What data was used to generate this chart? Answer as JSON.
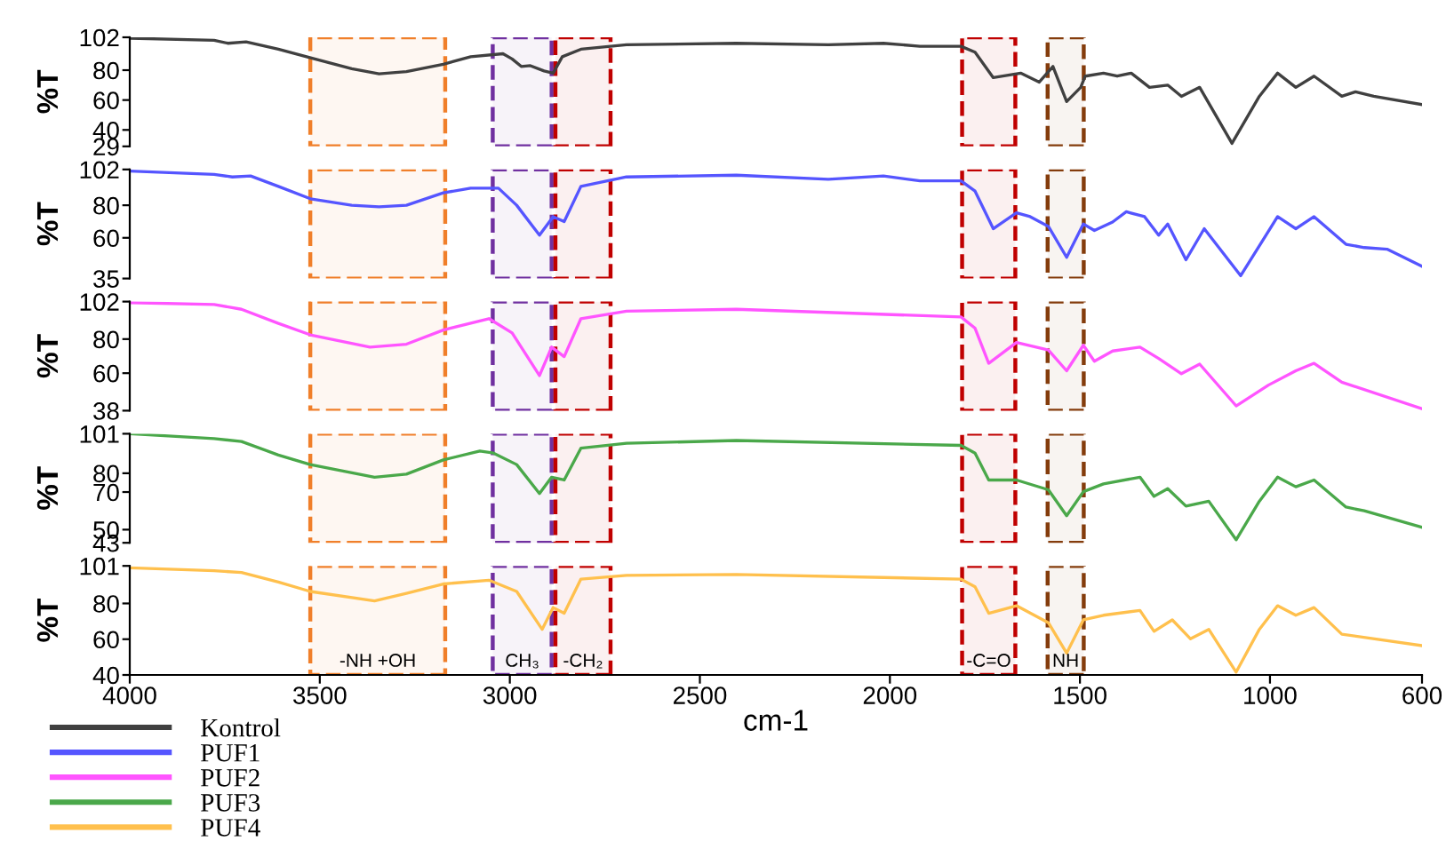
{
  "chart_data": [
    {
      "type": "line",
      "ylabel": "%T",
      "xlim": [
        4000,
        600
      ],
      "ylim": [
        29,
        102
      ],
      "yticks": [
        102,
        80,
        60,
        40,
        29
      ],
      "tick_labels": "y",
      "grid": false,
      "legend": "bottom left",
      "series": [
        {
          "name": "Kontrol",
          "color": "#404040",
          "x": [
            4000,
            3778,
            3742,
            3694,
            3609,
            3513,
            3416,
            3344,
            3272,
            3175,
            3103,
            3018,
            2994,
            2970,
            2946,
            2910,
            2886,
            2862,
            2813,
            2693,
            2404,
            2162,
            2017,
            1921,
            1813,
            1776,
            1728,
            1656,
            1607,
            1571,
            1535,
            1498,
            1486,
            1438,
            1402,
            1365,
            1317,
            1269,
            1233,
            1185,
            1100,
            1028,
            980,
            932,
            884,
            811,
            775,
            727,
            600
          ],
          "values": [
            101.4,
            100,
            98,
            99,
            94,
            87.5,
            81,
            77.5,
            79,
            84,
            89,
            91,
            87.5,
            82.5,
            83,
            79.5,
            78,
            89,
            94,
            97,
            98,
            97,
            98,
            96,
            96,
            92,
            75,
            78,
            72,
            82.5,
            59,
            68.5,
            76,
            78,
            76,
            78,
            68.5,
            70,
            62.5,
            68.5,
            31,
            62.5,
            78,
            68.5,
            76,
            62.5,
            65.5,
            62.5,
            57
          ]
        }
      ],
      "bands": [
        {
          "axis": "x",
          "from": 3525,
          "to": 3170,
          "label": null,
          "color": "#f07f2a"
        },
        {
          "axis": "x",
          "from": 3045,
          "to": 2890,
          "label": null,
          "color": "#7030a0"
        },
        {
          "axis": "x",
          "from": 2880,
          "to": 2735,
          "label": null,
          "color": "#c00000"
        },
        {
          "axis": "x",
          "from": 1810,
          "to": 1670,
          "label": null,
          "color": "#c00000"
        },
        {
          "axis": "x",
          "from": 1585,
          "to": 1490,
          "label": null,
          "color": "#843c0c"
        }
      ]
    },
    {
      "type": "line",
      "ylabel": "%T",
      "xlim": [
        4000,
        600
      ],
      "ylim": [
        35,
        102
      ],
      "yticks": [
        102,
        80,
        60,
        35
      ],
      "tick_labels": "y",
      "grid": false,
      "legend": "bottom left",
      "series": [
        {
          "name": "PUF1",
          "color": "#5555ff",
          "x": [
            4000,
            3778,
            3730,
            3682,
            3609,
            3525,
            3416,
            3344,
            3272,
            3175,
            3103,
            3030,
            2982,
            2922,
            2886,
            2857,
            2813,
            2693,
            2404,
            2162,
            2017,
            1921,
            1813,
            1776,
            1728,
            1667,
            1631,
            1583,
            1535,
            1491,
            1462,
            1414,
            1378,
            1330,
            1293,
            1269,
            1221,
            1173,
            1077,
            980,
            932,
            884,
            800,
            752,
            692,
            600
          ],
          "values": [
            101,
            99,
            97.4,
            98,
            91.6,
            84,
            80,
            79,
            80,
            87.6,
            90.5,
            90.5,
            80,
            61.6,
            73,
            70,
            91.6,
            97.4,
            98.5,
            96,
            98,
            95,
            95,
            88.7,
            65.6,
            75.4,
            73,
            67,
            48,
            68.5,
            64.5,
            69.7,
            76,
            73,
            61.6,
            68.5,
            46.5,
            65.6,
            36.7,
            73,
            65.6,
            73,
            56,
            54,
            53,
            42.5
          ]
        }
      ],
      "bands": [
        {
          "axis": "x",
          "from": 3525,
          "to": 3170,
          "label": null,
          "color": "#f07f2a"
        },
        {
          "axis": "x",
          "from": 3045,
          "to": 2890,
          "label": null,
          "color": "#7030a0"
        },
        {
          "axis": "x",
          "from": 2880,
          "to": 2735,
          "label": null,
          "color": "#c00000"
        },
        {
          "axis": "x",
          "from": 1810,
          "to": 1670,
          "label": null,
          "color": "#c00000"
        },
        {
          "axis": "x",
          "from": 1585,
          "to": 1490,
          "label": null,
          "color": "#843c0c"
        }
      ]
    },
    {
      "type": "line",
      "ylabel": "%T",
      "xlim": [
        4000,
        600
      ],
      "ylim": [
        38,
        102
      ],
      "yticks": [
        102,
        80,
        60,
        38
      ],
      "tick_labels": "y",
      "grid": false,
      "legend": "bottom left",
      "series": [
        {
          "name": "PUF2",
          "color": "#ff55ff",
          "x": [
            4000,
            3778,
            3706,
            3609,
            3525,
            3368,
            3272,
            3175,
            3055,
            2994,
            2922,
            2890,
            2857,
            2813,
            2693,
            2404,
            1813,
            1776,
            1740,
            1667,
            1583,
            1535,
            1491,
            1462,
            1414,
            1342,
            1293,
            1233,
            1185,
            1089,
            1004,
            932,
            884,
            811,
            600
          ],
          "values": [
            101.4,
            100.3,
            97.5,
            89.2,
            82.5,
            75.3,
            77,
            85.3,
            92,
            83.6,
            58.6,
            75.3,
            69.7,
            92,
            96.4,
            97.5,
            93,
            86.4,
            65.8,
            78,
            73.6,
            61.4,
            76.4,
            67,
            73,
            75.3,
            68.6,
            59.7,
            65.3,
            40.8,
            53,
            61.4,
            65.8,
            54.7,
            39.1
          ]
        }
      ],
      "bands": [
        {
          "axis": "x",
          "from": 3525,
          "to": 3170,
          "label": null,
          "color": "#f07f2a"
        },
        {
          "axis": "x",
          "from": 3045,
          "to": 2890,
          "label": null,
          "color": "#7030a0"
        },
        {
          "axis": "x",
          "from": 2880,
          "to": 2735,
          "label": null,
          "color": "#c00000"
        },
        {
          "axis": "x",
          "from": 1810,
          "to": 1670,
          "label": null,
          "color": "#c00000"
        },
        {
          "axis": "x",
          "from": 1585,
          "to": 1490,
          "label": null,
          "color": "#843c0c"
        }
      ]
    },
    {
      "type": "line",
      "ylabel": "%T",
      "xlim": [
        4000,
        600
      ],
      "ylim": [
        43,
        101
      ],
      "yticks": [
        101,
        80,
        70,
        50,
        43
      ],
      "tick_labels": "y",
      "grid": false,
      "legend": "bottom left",
      "series": [
        {
          "name": "PUF3",
          "color": "#4aa84a",
          "x": [
            4000,
            3778,
            3706,
            3609,
            3525,
            3356,
            3272,
            3175,
            3079,
            3043,
            2982,
            2922,
            2890,
            2857,
            2813,
            2693,
            2404,
            1813,
            1776,
            1740,
            1667,
            1583,
            1535,
            1491,
            1438,
            1342,
            1305,
            1269,
            1221,
            1161,
            1089,
            1028,
            980,
            932,
            884,
            800,
            752,
            600
          ],
          "values": [
            101,
            98.4,
            96.9,
            89.7,
            84.6,
            77.9,
            79.5,
            87.1,
            91.8,
            90.7,
            84.6,
            69.2,
            77.9,
            76.4,
            93.3,
            95.9,
            97.4,
            94.8,
            90.7,
            76.4,
            76.4,
            71.2,
            57.4,
            70.2,
            74.3,
            77.9,
            67.7,
            71.8,
            62.5,
            65.1,
            44.6,
            65.1,
            77.9,
            72.8,
            76.4,
            62,
            60,
            51.2
          ]
        }
      ],
      "bands": [
        {
          "axis": "x",
          "from": 3525,
          "to": 3170,
          "label": null,
          "color": "#f07f2a"
        },
        {
          "axis": "x",
          "from": 3045,
          "to": 2890,
          "label": null,
          "color": "#7030a0"
        },
        {
          "axis": "x",
          "from": 2880,
          "to": 2735,
          "label": null,
          "color": "#c00000"
        },
        {
          "axis": "x",
          "from": 1810,
          "to": 1670,
          "label": null,
          "color": "#c00000"
        },
        {
          "axis": "x",
          "from": 1585,
          "to": 1490,
          "label": null,
          "color": "#843c0c"
        }
      ]
    },
    {
      "type": "line",
      "ylabel": "%T",
      "xlabel": "cm-1",
      "xlim": [
        4000,
        600
      ],
      "xticks": [
        4000,
        3500,
        3000,
        2500,
        2000,
        1500,
        1000,
        600
      ],
      "ylim": [
        40,
        101
      ],
      "yticks": [
        101,
        80,
        60,
        40
      ],
      "grid": false,
      "legend": "bottom left",
      "series": [
        {
          "name": "PUF4",
          "color": "#ffc04d",
          "x": [
            4000,
            3778,
            3706,
            3609,
            3525,
            3356,
            3272,
            3175,
            3055,
            2982,
            2915,
            2886,
            2857,
            2813,
            2693,
            2404,
            1813,
            1776,
            1740,
            1667,
            1583,
            1535,
            1491,
            1438,
            1342,
            1305,
            1257,
            1209,
            1161,
            1089,
            1028,
            980,
            932,
            884,
            811,
            600
          ],
          "values": [
            99.9,
            98.3,
            97.3,
            92,
            86.7,
            81.4,
            85.6,
            90.9,
            93,
            86.7,
            65.5,
            77.7,
            74.5,
            93.6,
            95.7,
            96.2,
            93.6,
            89.3,
            74.5,
            78.7,
            69.2,
            52.2,
            70.8,
            73.4,
            76.1,
            64.4,
            70.8,
            60.2,
            65.5,
            41.6,
            65.5,
            78.7,
            73.4,
            77.7,
            62.8,
            56.4
          ]
        }
      ],
      "bands": [
        {
          "axis": "x",
          "from": 3525,
          "to": 3170,
          "label": "-NH +OH",
          "color": "#f07f2a"
        },
        {
          "axis": "x",
          "from": 3045,
          "to": 2890,
          "label": "CH₃",
          "color": "#7030a0"
        },
        {
          "axis": "x",
          "from": 2880,
          "to": 2735,
          "label": "-CH₂",
          "color": "#c00000"
        },
        {
          "axis": "x",
          "from": 1810,
          "to": 1670,
          "label": "-C=O",
          "color": "#c00000"
        },
        {
          "axis": "x",
          "from": 1585,
          "to": 1490,
          "label": "NH",
          "color": "#843c0c"
        }
      ]
    }
  ]
}
